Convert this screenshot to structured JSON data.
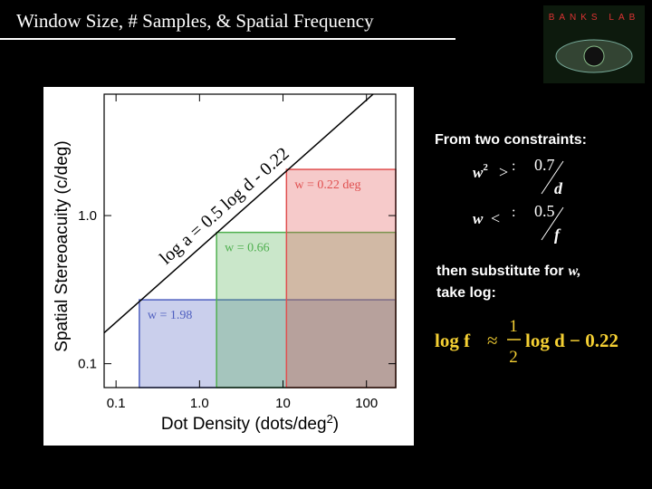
{
  "slide": {
    "title": "Window Size, # Samples, & Spatial Frequency",
    "logo": "BANKS LAB"
  },
  "chart_data": {
    "type": "region",
    "x_label_parts": [
      "Dot Density (dots/deg",
      "2",
      ")"
    ],
    "y_label": "Spatial Stereoacuity (c/deg)",
    "log_x": true,
    "log_y": true,
    "xlim": [
      0.072,
      224
    ],
    "ylim": [
      0.069,
      6.6
    ],
    "xticks": [
      0.1,
      {
        "value": 1,
        "label": "1.0"
      },
      10,
      100
    ],
    "yticks": [
      0.1,
      {
        "value": 1,
        "label": "1.0"
      }
    ],
    "line": {
      "label": "log a = 0.5 log d - 0.22",
      "slope": 0.5,
      "intercept": -0.22,
      "color": "#000000"
    },
    "regions": [
      {
        "name": "w = 1.98",
        "color": "#5060c0",
        "x": 0.19,
        "y": 0.27
      },
      {
        "name": "w = 0.66",
        "color": "#50b050",
        "x": 1.6,
        "y": 0.77
      },
      {
        "name": "w = 0.22 deg",
        "color": "#e05050",
        "x": 11,
        "y": 2.05
      }
    ]
  },
  "notes": {
    "heading": "From two constraints:",
    "constraint1": {
      "lhs": "w",
      "exp": "2",
      "op": ">",
      "sep": ":",
      "num": "0.7",
      "den": "d"
    },
    "constraint2": {
      "lhs": "w",
      "op": "<",
      "sep": ":",
      "num": "0.5",
      "den": "f"
    },
    "text_lines": [
      "then substitute for",
      "w,",
      "take log:"
    ],
    "result": {
      "lhs": "log f",
      "approx": "≈",
      "num": "1",
      "den": "2",
      "rhs": "log d − 0.22"
    }
  }
}
